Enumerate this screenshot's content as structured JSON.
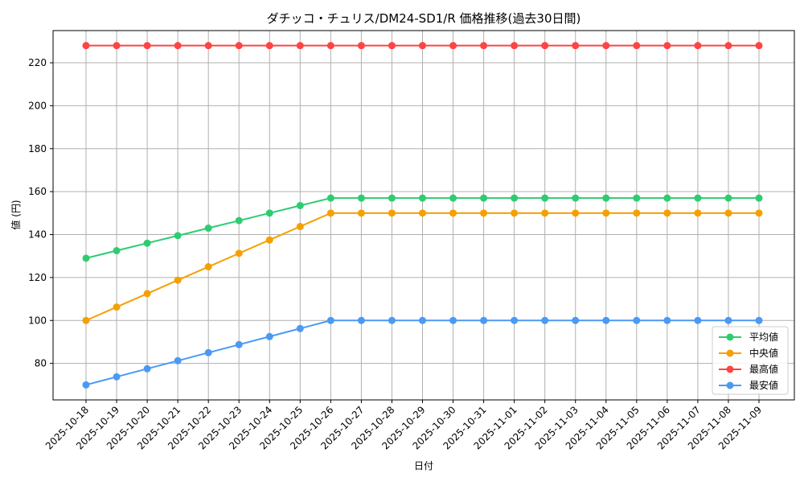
{
  "chart_data": {
    "type": "line",
    "title": "ダチッコ・チュリス/DM24-SD1/R 価格推移(過去30日間)",
    "xlabel": "日付",
    "ylabel": "値 (円)",
    "ylim": [
      63,
      235
    ],
    "yticks": [
      80,
      100,
      120,
      140,
      160,
      180,
      200,
      220
    ],
    "grid": true,
    "legend_position": "lower-right",
    "categories": [
      "2025-10-18",
      "2025-10-19",
      "2025-10-20",
      "2025-10-21",
      "2025-10-22",
      "2025-10-23",
      "2025-10-24",
      "2025-10-25",
      "2025-10-26",
      "2025-10-27",
      "2025-10-28",
      "2025-10-29",
      "2025-10-30",
      "2025-10-31",
      "2025-11-01",
      "2025-11-02",
      "2025-11-03",
      "2025-11-04",
      "2025-11-05",
      "2025-11-06",
      "2025-11-07",
      "2025-11-08",
      "2025-11-09"
    ],
    "series": [
      {
        "name": "平均値",
        "color": "#2ecc71",
        "values": [
          129,
          132.5,
          136,
          139.5,
          143,
          146.5,
          150,
          153.5,
          157,
          157,
          157,
          157,
          157,
          157,
          157,
          157,
          157,
          157,
          157,
          157,
          157,
          157,
          157
        ]
      },
      {
        "name": "中央値",
        "color": "#f5a000",
        "values": [
          100,
          106.25,
          112.5,
          118.75,
          125,
          131.25,
          137.5,
          143.75,
          150,
          150,
          150,
          150,
          150,
          150,
          150,
          150,
          150,
          150,
          150,
          150,
          150,
          150,
          150
        ]
      },
      {
        "name": "最高値",
        "color": "#ff4444",
        "values": [
          228,
          228,
          228,
          228,
          228,
          228,
          228,
          228,
          228,
          228,
          228,
          228,
          228,
          228,
          228,
          228,
          228,
          228,
          228,
          228,
          228,
          228,
          228
        ]
      },
      {
        "name": "最安値",
        "color": "#4a9af5",
        "values": [
          70,
          73.75,
          77.5,
          81.25,
          85,
          88.75,
          92.5,
          96.25,
          100,
          100,
          100,
          100,
          100,
          100,
          100,
          100,
          100,
          100,
          100,
          100,
          100,
          100,
          100
        ]
      }
    ]
  }
}
